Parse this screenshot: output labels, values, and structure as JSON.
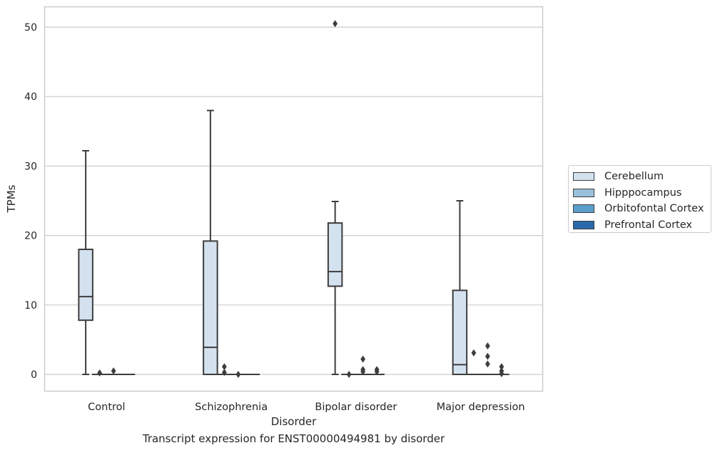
{
  "chart_data": {
    "type": "boxplot",
    "caption": "Transcript expression for ENST00000494981 by disorder",
    "xlabel": "Disorder",
    "ylabel": "TPMs",
    "categories": [
      "Control",
      "Schizophrenia",
      "Bipolar disorder",
      "Major depression"
    ],
    "yticks": [
      0,
      10,
      20,
      30,
      40,
      50
    ],
    "ylim": [
      -2.4,
      53.0
    ],
    "grid": "horizontal",
    "legend_position": "right",
    "series": [
      {
        "name": "Cerebellum",
        "color": "#d4e2f0",
        "boxes": [
          {
            "whislo": 0.0,
            "q1": 7.8,
            "median": 11.2,
            "q3": 18.0,
            "whishi": 32.2,
            "fliers": []
          },
          {
            "whislo": 0.0,
            "q1": 0.0,
            "median": 3.9,
            "q3": 19.2,
            "whishi": 38.0,
            "fliers": []
          },
          {
            "whislo": 0.0,
            "q1": 12.7,
            "median": 14.8,
            "q3": 21.8,
            "whishi": 24.9,
            "fliers": [
              50.5
            ]
          },
          {
            "whislo": 0.0,
            "q1": 0.0,
            "median": 1.4,
            "q3": 12.1,
            "whishi": 25.0,
            "fliers": []
          }
        ]
      },
      {
        "name": "Hipppocampus",
        "color": "#9ac1dc",
        "boxes": [
          {
            "whislo": 0,
            "q1": 0,
            "median": 0,
            "q3": 0,
            "whishi": 0,
            "fliers": [
              0.2
            ]
          },
          {
            "whislo": 0,
            "q1": 0,
            "median": 0,
            "q3": 0,
            "whishi": 0,
            "fliers": [
              1.1,
              0.3
            ]
          },
          {
            "whislo": 0,
            "q1": 0,
            "median": 0,
            "q3": 0,
            "whishi": 0,
            "fliers": [
              0.0
            ]
          },
          {
            "whislo": 0,
            "q1": 0,
            "median": 0,
            "q3": 0,
            "whishi": 0,
            "fliers": [
              3.1
            ]
          }
        ]
      },
      {
        "name": "Orbitofontal Cortex",
        "color": "#5a9fcb",
        "boxes": [
          {
            "whislo": 0,
            "q1": 0,
            "median": 0,
            "q3": 0,
            "whishi": 0,
            "fliers": [
              0.5
            ]
          },
          {
            "whislo": 0,
            "q1": 0,
            "median": 0,
            "q3": 0,
            "whishi": 0,
            "fliers": [
              0.0
            ]
          },
          {
            "whislo": 0,
            "q1": 0,
            "median": 0,
            "q3": 0,
            "whishi": 0,
            "fliers": [
              2.2,
              0.7,
              0.4
            ]
          },
          {
            "whislo": 0,
            "q1": 0,
            "median": 0,
            "q3": 0,
            "whishi": 0,
            "fliers": [
              4.1,
              2.6,
              1.5
            ]
          }
        ]
      },
      {
        "name": "Prefrontal Cortex",
        "color": "#2a6aab",
        "boxes": [
          {
            "whislo": 0,
            "q1": 0,
            "median": 0,
            "q3": 0,
            "whishi": 0,
            "fliers": []
          },
          {
            "whislo": 0,
            "q1": 0,
            "median": 0,
            "q3": 0,
            "whishi": 0,
            "fliers": []
          },
          {
            "whislo": 0,
            "q1": 0,
            "median": 0,
            "q3": 0,
            "whishi": 0,
            "fliers": [
              0.7,
              0.4
            ]
          },
          {
            "whislo": 0,
            "q1": 0,
            "median": 0,
            "q3": 0,
            "whishi": 0,
            "fliers": [
              1.1,
              0.5,
              0.1
            ]
          }
        ]
      }
    ]
  }
}
